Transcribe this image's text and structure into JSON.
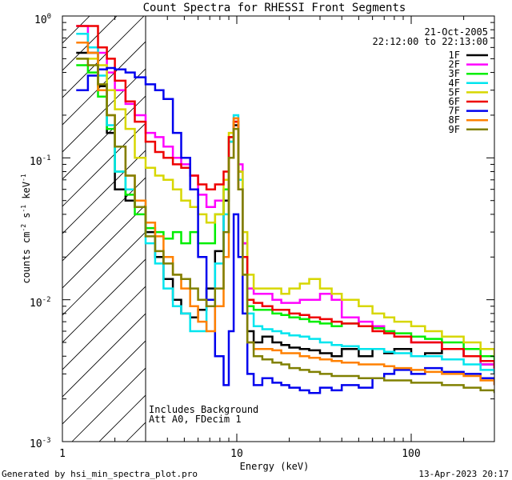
{
  "chart_data": {
    "type": "line",
    "title": "Count Spectra for RHESSI Front Segments",
    "xlabel": "Energy (keV)",
    "ylabel_parts": [
      "counts cm",
      "-2",
      " s",
      "-1",
      " keV",
      "-1"
    ],
    "xscale": "log",
    "yscale": "log",
    "xlim": [
      1,
      300
    ],
    "ylim": [
      0.001,
      1
    ],
    "xticks": [
      {
        "v": 1,
        "label": "1"
      },
      {
        "v": 10,
        "label": "10"
      },
      {
        "v": 100,
        "label": "100"
      }
    ],
    "yticks": [
      {
        "v": 1,
        "base": "10",
        "exp": "0"
      },
      {
        "v": 0.1,
        "base": "10",
        "exp": "-1"
      },
      {
        "v": 0.01,
        "base": "10",
        "exp": "-2"
      },
      {
        "v": 0.001,
        "base": "10",
        "exp": "-3"
      }
    ],
    "date": "21-Oct-2005",
    "time_range": "22:12:00 to 22:13:00",
    "annotations": [
      "Includes Background",
      "Att A0, FDecim 1"
    ],
    "hatch_region_xmax": 3,
    "series": [
      {
        "name": "1F",
        "color": "#000000",
        "x": [
          1.2,
          1.4,
          1.6,
          1.8,
          2.0,
          2.3,
          2.6,
          3.0,
          3.4,
          3.8,
          4.3,
          4.8,
          5.4,
          6.0,
          6.7,
          7.5,
          8.4,
          9.0,
          9.6,
          10.2,
          10.8,
          11.5,
          12.5,
          14,
          16,
          18,
          20,
          23,
          26,
          30,
          35,
          40,
          50,
          60,
          70,
          80,
          100,
          120,
          150,
          200,
          250,
          300
        ],
        "y": [
          0.55,
          0.55,
          0.32,
          0.15,
          0.06,
          0.05,
          0.045,
          0.03,
          0.02,
          0.014,
          0.01,
          0.008,
          0.0075,
          0.0085,
          0.012,
          0.022,
          0.05,
          0.13,
          0.17,
          0.08,
          0.025,
          0.006,
          0.005,
          0.0055,
          0.005,
          0.0048,
          0.0046,
          0.0045,
          0.0044,
          0.0042,
          0.004,
          0.0045,
          0.004,
          0.0045,
          0.0042,
          0.0045,
          0.004,
          0.0042,
          0.0045,
          0.004,
          0.0035,
          0.003
        ]
      },
      {
        "name": "2F",
        "color": "#ff00ff",
        "x": [
          1.2,
          1.4,
          1.6,
          1.8,
          2.0,
          2.3,
          2.6,
          3.0,
          3.4,
          3.8,
          4.3,
          4.8,
          5.4,
          6.0,
          6.7,
          7.5,
          8.4,
          9.0,
          9.6,
          10.2,
          10.8,
          11.5,
          12.5,
          14,
          16,
          18,
          20,
          23,
          26,
          30,
          35,
          40,
          50,
          60,
          70,
          80,
          100,
          120,
          150,
          200,
          250,
          300
        ],
        "y": [
          0.85,
          0.6,
          0.55,
          0.4,
          0.3,
          0.24,
          0.2,
          0.15,
          0.14,
          0.12,
          0.1,
          0.09,
          0.075,
          0.055,
          0.045,
          0.05,
          0.06,
          0.14,
          0.19,
          0.09,
          0.025,
          0.012,
          0.011,
          0.011,
          0.01,
          0.0095,
          0.0095,
          0.01,
          0.01,
          0.011,
          0.01,
          0.0075,
          0.007,
          0.0065,
          0.006,
          0.0055,
          0.005,
          0.005,
          0.0045,
          0.004,
          0.0035,
          0.003
        ]
      },
      {
        "name": "3F",
        "color": "#00ee00",
        "x": [
          1.2,
          1.4,
          1.6,
          1.8,
          2.0,
          2.3,
          2.6,
          3.0,
          3.4,
          3.8,
          4.3,
          4.8,
          5.4,
          6.0,
          6.7,
          7.5,
          8.4,
          9.0,
          9.6,
          10.2,
          10.8,
          11.5,
          12.5,
          14,
          16,
          18,
          20,
          23,
          26,
          30,
          35,
          40,
          50,
          60,
          70,
          80,
          100,
          120,
          150,
          200,
          250,
          300
        ],
        "y": [
          0.45,
          0.4,
          0.27,
          0.16,
          0.08,
          0.055,
          0.04,
          0.032,
          0.03,
          0.027,
          0.03,
          0.025,
          0.03,
          0.025,
          0.025,
          0.04,
          0.06,
          0.14,
          0.18,
          0.07,
          0.02,
          0.009,
          0.0085,
          0.0085,
          0.008,
          0.0078,
          0.0075,
          0.0073,
          0.007,
          0.0068,
          0.0065,
          0.0068,
          0.0065,
          0.0063,
          0.006,
          0.0058,
          0.0055,
          0.0053,
          0.005,
          0.0045,
          0.004,
          0.0035
        ]
      },
      {
        "name": "4F",
        "color": "#00e5ee",
        "x": [
          1.2,
          1.4,
          1.6,
          1.8,
          2.0,
          2.3,
          2.6,
          3.0,
          3.4,
          3.8,
          4.3,
          4.8,
          5.4,
          6.0,
          6.7,
          7.5,
          8.4,
          9.0,
          9.6,
          10.2,
          10.8,
          11.5,
          12.5,
          14,
          16,
          18,
          20,
          23,
          26,
          30,
          35,
          40,
          50,
          60,
          70,
          80,
          100,
          120,
          150,
          200,
          250,
          300
        ],
        "y": [
          0.75,
          0.6,
          0.38,
          0.17,
          0.08,
          0.06,
          0.05,
          0.025,
          0.018,
          0.012,
          0.009,
          0.008,
          0.006,
          0.006,
          0.009,
          0.018,
          0.04,
          0.13,
          0.2,
          0.07,
          0.02,
          0.008,
          0.0065,
          0.0062,
          0.006,
          0.0058,
          0.0056,
          0.0055,
          0.0053,
          0.005,
          0.0048,
          0.0047,
          0.0045,
          0.0045,
          0.0043,
          0.0042,
          0.004,
          0.004,
          0.0038,
          0.0035,
          0.0032,
          0.003
        ]
      },
      {
        "name": "5F",
        "color": "#d7d700",
        "x": [
          1.2,
          1.4,
          1.6,
          1.8,
          2.0,
          2.3,
          2.6,
          3.0,
          3.4,
          3.8,
          4.3,
          4.8,
          5.4,
          6.0,
          6.7,
          7.5,
          8.4,
          9.0,
          9.6,
          10.2,
          10.8,
          11.5,
          12.5,
          14,
          16,
          18,
          20,
          23,
          26,
          30,
          35,
          40,
          50,
          60,
          70,
          80,
          100,
          120,
          150,
          200,
          250,
          300
        ],
        "y": [
          0.5,
          0.5,
          0.45,
          0.3,
          0.22,
          0.16,
          0.1,
          0.085,
          0.075,
          0.07,
          0.06,
          0.05,
          0.045,
          0.04,
          0.035,
          0.04,
          0.07,
          0.15,
          0.18,
          0.08,
          0.03,
          0.015,
          0.012,
          0.012,
          0.012,
          0.011,
          0.012,
          0.013,
          0.014,
          0.012,
          0.011,
          0.01,
          0.009,
          0.008,
          0.0075,
          0.007,
          0.0065,
          0.006,
          0.0055,
          0.005,
          0.0045,
          0.004
        ]
      },
      {
        "name": "6F",
        "color": "#ee0000",
        "x": [
          1.2,
          1.4,
          1.6,
          1.8,
          2.0,
          2.3,
          2.6,
          3.0,
          3.4,
          3.8,
          4.3,
          4.8,
          5.4,
          6.0,
          6.7,
          7.5,
          8.4,
          9.0,
          9.6,
          10.2,
          10.8,
          11.5,
          12.5,
          14,
          16,
          18,
          20,
          23,
          26,
          30,
          35,
          40,
          50,
          60,
          70,
          80,
          100,
          120,
          150,
          200,
          250,
          300
        ],
        "y": [
          0.85,
          0.85,
          0.6,
          0.5,
          0.35,
          0.25,
          0.18,
          0.13,
          0.11,
          0.1,
          0.09,
          0.085,
          0.075,
          0.065,
          0.06,
          0.065,
          0.08,
          0.14,
          0.18,
          0.06,
          0.02,
          0.01,
          0.0095,
          0.009,
          0.0085,
          0.0085,
          0.008,
          0.0078,
          0.0075,
          0.0073,
          0.007,
          0.0068,
          0.0065,
          0.006,
          0.0058,
          0.0055,
          0.005,
          0.005,
          0.0045,
          0.004,
          0.0037,
          0.0033
        ]
      },
      {
        "name": "7F",
        "color": "#0000ee",
        "x": [
          1.2,
          1.4,
          1.6,
          1.8,
          2.0,
          2.3,
          2.6,
          3.0,
          3.4,
          3.8,
          4.3,
          4.8,
          5.4,
          6.0,
          6.7,
          7.5,
          8.4,
          9.0,
          9.6,
          10.2,
          10.8,
          11.5,
          12.5,
          14,
          16,
          18,
          20,
          23,
          26,
          30,
          35,
          40,
          50,
          60,
          70,
          80,
          100,
          120,
          150,
          200,
          250,
          300
        ],
        "y": [
          0.3,
          0.38,
          0.42,
          0.43,
          0.42,
          0.4,
          0.37,
          0.33,
          0.3,
          0.26,
          0.15,
          0.1,
          0.06,
          0.02,
          0.01,
          0.004,
          0.0025,
          0.006,
          0.04,
          0.02,
          0.008,
          0.003,
          0.0025,
          0.0028,
          0.0026,
          0.0025,
          0.0024,
          0.0023,
          0.0022,
          0.0024,
          0.0023,
          0.0025,
          0.0024,
          0.0028,
          0.003,
          0.0032,
          0.003,
          0.0033,
          0.0031,
          0.003,
          0.0028,
          0.0025
        ]
      },
      {
        "name": "8F",
        "color": "#ff8000",
        "x": [
          1.2,
          1.4,
          1.6,
          1.8,
          2.0,
          2.3,
          2.6,
          3.0,
          3.4,
          3.8,
          4.3,
          4.8,
          5.4,
          6.0,
          6.7,
          7.5,
          8.4,
          9.0,
          9.6,
          10.2,
          10.8,
          11.5,
          12.5,
          14,
          16,
          18,
          20,
          23,
          26,
          30,
          35,
          40,
          50,
          60,
          70,
          80,
          100,
          120,
          150,
          200,
          250,
          300
        ],
        "y": [
          0.65,
          0.55,
          0.3,
          0.2,
          0.12,
          0.075,
          0.05,
          0.035,
          0.028,
          0.02,
          0.015,
          0.012,
          0.009,
          0.007,
          0.006,
          0.009,
          0.02,
          0.1,
          0.19,
          0.06,
          0.015,
          0.005,
          0.0045,
          0.0045,
          0.0044,
          0.0042,
          0.0042,
          0.004,
          0.0039,
          0.0038,
          0.0037,
          0.0036,
          0.0035,
          0.0035,
          0.0034,
          0.0033,
          0.0032,
          0.0031,
          0.003,
          0.0029,
          0.0027,
          0.0025
        ]
      },
      {
        "name": "9F",
        "color": "#808000",
        "x": [
          1.2,
          1.4,
          1.6,
          1.8,
          2.0,
          2.3,
          2.6,
          3.0,
          3.4,
          3.8,
          4.3,
          4.8,
          5.4,
          6.0,
          6.7,
          7.5,
          8.4,
          9.0,
          9.6,
          10.2,
          10.8,
          11.5,
          12.5,
          14,
          16,
          18,
          20,
          23,
          26,
          30,
          35,
          40,
          50,
          60,
          70,
          80,
          100,
          120,
          150,
          200,
          250,
          300
        ],
        "y": [
          0.5,
          0.45,
          0.33,
          0.2,
          0.12,
          0.075,
          0.045,
          0.028,
          0.022,
          0.018,
          0.015,
          0.014,
          0.012,
          0.01,
          0.009,
          0.012,
          0.03,
          0.1,
          0.16,
          0.06,
          0.015,
          0.005,
          0.004,
          0.0038,
          0.0036,
          0.0035,
          0.0033,
          0.0032,
          0.0031,
          0.003,
          0.0029,
          0.0029,
          0.0028,
          0.0028,
          0.0027,
          0.0027,
          0.0026,
          0.0026,
          0.0025,
          0.0024,
          0.0023,
          0.0022
        ]
      }
    ]
  },
  "footer": {
    "generated_by": "Generated by hsi_min_spectra_plot.pro",
    "timestamp": "13-Apr-2023 20:17"
  }
}
